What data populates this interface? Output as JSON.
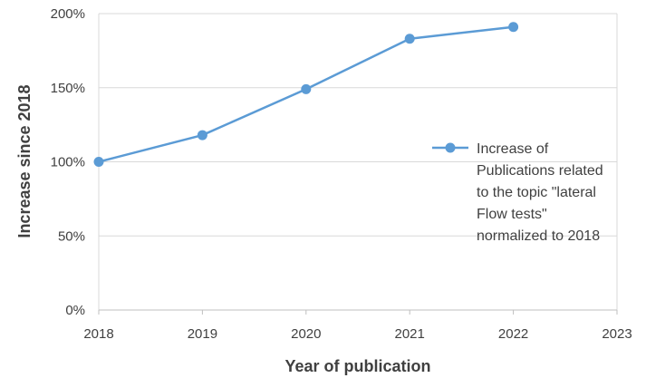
{
  "chart_data": {
    "type": "line",
    "xlabel": "Year of publication",
    "ylabel": "Increase since 2018",
    "xlim": [
      2018,
      2023
    ],
    "ylim": [
      0,
      200
    ],
    "x_ticks": [
      "2018",
      "2019",
      "2020",
      "2021",
      "2022",
      "2023"
    ],
    "y_ticks": [
      "0%",
      "50%",
      "100%",
      "150%",
      "200%"
    ],
    "grid": true,
    "legend_position": "right",
    "series": [
      {
        "name": "Increase of Publications related to the topic \"lateral Flow tests\" normalized to 2018",
        "legend_lines": [
          "Increase of",
          "Publications related",
          "to the topic \"lateral",
          "Flow tests\"",
          "normalized to 2018"
        ],
        "color": "#5b9bd5",
        "x": [
          2018,
          2019,
          2020,
          2021,
          2022
        ],
        "y": [
          100,
          118,
          149,
          183,
          191
        ]
      }
    ]
  }
}
